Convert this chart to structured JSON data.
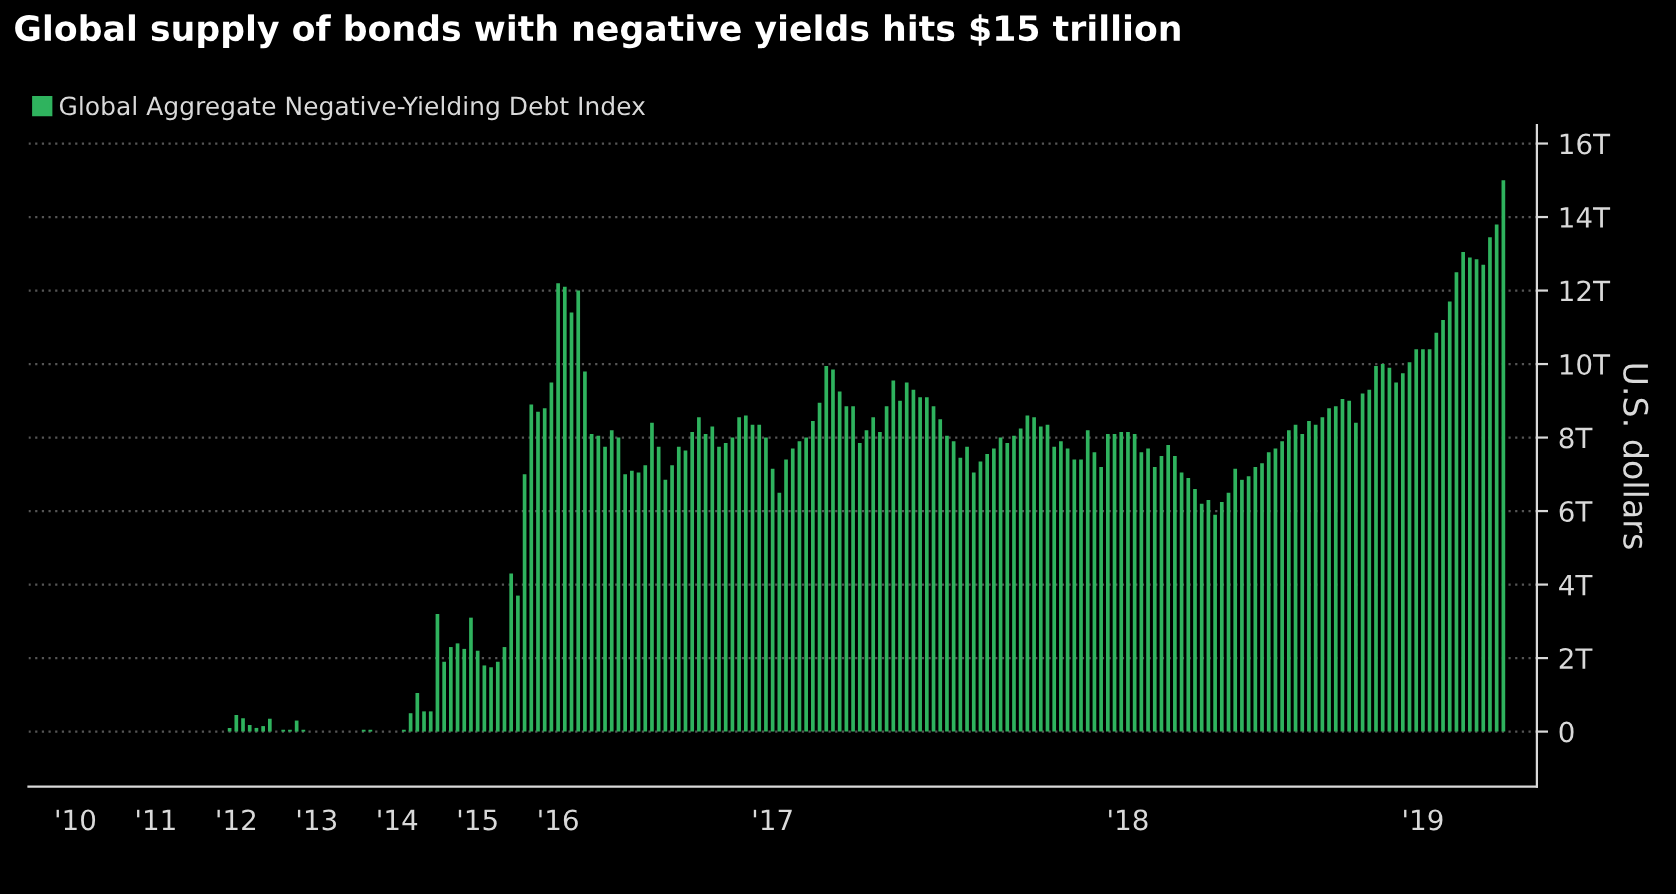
{
  "chart_data": {
    "type": "bar",
    "title": "Global supply of bonds with negative yields hits $15 trillion",
    "ylabel": "U.S. dollars",
    "categories": [
      null,
      null,
      null,
      null,
      null,
      null,
      "'10",
      null,
      null,
      null,
      null,
      null,
      null,
      null,
      null,
      null,
      null,
      null,
      "'11",
      null,
      null,
      null,
      null,
      null,
      null,
      null,
      null,
      null,
      null,
      null,
      "'12",
      null,
      null,
      null,
      null,
      null,
      null,
      null,
      null,
      null,
      null,
      null,
      "'13",
      null,
      null,
      null,
      null,
      null,
      null,
      null,
      null,
      null,
      null,
      null,
      "'14",
      null,
      null,
      null,
      null,
      null,
      null,
      null,
      null,
      null,
      null,
      null,
      "'15",
      null,
      null,
      null,
      null,
      null,
      null,
      null,
      null,
      null,
      null,
      null,
      "'16",
      null,
      null,
      null,
      null,
      null,
      null,
      null,
      null,
      null,
      null,
      null,
      null,
      null,
      null,
      null,
      null,
      null,
      null,
      null,
      null,
      null,
      null,
      null,
      null,
      null,
      null,
      null,
      null,
      null,
      null,
      null,
      "'17",
      null,
      null,
      null,
      null,
      null,
      null,
      null,
      null,
      null,
      null,
      null,
      null,
      null,
      null,
      null,
      null,
      null,
      null,
      null,
      null,
      null,
      null,
      null,
      null,
      null,
      null,
      null,
      null,
      null,
      null,
      null,
      null,
      null,
      null,
      null,
      null,
      null,
      null,
      null,
      null,
      null,
      null,
      null,
      null,
      null,
      null,
      null,
      null,
      null,
      null,
      null,
      null,
      "'18",
      null,
      null,
      null,
      null,
      null,
      null,
      null,
      null,
      null,
      null,
      null,
      null,
      null,
      null,
      null,
      null,
      null,
      null,
      null,
      null,
      null,
      null,
      null,
      null,
      null,
      null,
      null,
      null,
      null,
      null,
      null,
      null,
      null,
      null,
      null,
      null,
      null,
      null,
      null,
      null,
      null,
      null,
      null,
      "'19",
      null,
      null,
      null,
      null,
      null,
      null,
      null,
      null,
      null,
      null,
      null,
      null
    ],
    "series": [
      {
        "name": "Global Aggregate Negative-Yielding Debt Index",
        "color": "#2fb35e",
        "values": [
          0,
          0,
          0,
          0,
          0,
          0,
          0,
          0,
          0,
          0,
          0,
          0,
          0,
          0,
          0,
          0,
          0,
          0,
          0,
          0,
          0,
          0,
          0,
          0,
          0,
          0,
          0,
          0,
          0,
          0.1,
          0.45,
          0.36,
          0.18,
          0.1,
          0.15,
          0.35,
          0,
          0.05,
          0.05,
          0.3,
          0.05,
          0,
          0,
          0,
          0,
          0,
          0,
          0,
          0,
          0.05,
          0.05,
          0,
          0,
          0,
          0,
          0.05,
          0.5,
          1.05,
          0.55,
          0.55,
          3.2,
          1.9,
          2.3,
          2.4,
          2.25,
          3.1,
          2.2,
          1.8,
          1.75,
          1.9,
          2.3,
          4.3,
          3.7,
          7.0,
          8.9,
          8.7,
          8.8,
          9.5,
          12.2,
          12.1,
          11.4,
          12.0,
          9.8,
          8.1,
          8.05,
          7.75,
          8.2,
          8.0,
          7.0,
          7.1,
          7.05,
          7.25,
          8.4,
          7.75,
          6.85,
          7.25,
          7.75,
          7.65,
          8.15,
          8.55,
          8.1,
          8.3,
          7.75,
          7.85,
          8.0,
          8.55,
          8.6,
          8.35,
          8.35,
          8.0,
          7.15,
          6.5,
          7.4,
          7.7,
          7.9,
          8.0,
          8.45,
          8.95,
          9.95,
          9.85,
          9.25,
          8.85,
          8.85,
          7.85,
          8.2,
          8.55,
          8.15,
          8.85,
          9.55,
          9.0,
          9.5,
          9.3,
          9.1,
          9.1,
          8.85,
          8.5,
          8.05,
          7.9,
          7.45,
          7.75,
          7.05,
          7.35,
          7.55,
          7.7,
          8.0,
          7.85,
          8.05,
          8.25,
          8.6,
          8.55,
          8.3,
          8.35,
          7.75,
          7.9,
          7.7,
          7.4,
          7.4,
          8.2,
          7.6,
          7.2,
          8.1,
          8.1,
          8.15,
          8.15,
          8.1,
          7.6,
          7.7,
          7.2,
          7.5,
          7.8,
          7.5,
          7.05,
          6.9,
          6.6,
          6.2,
          6.3,
          5.9,
          6.25,
          6.5,
          7.15,
          6.85,
          6.95,
          7.2,
          7.3,
          7.6,
          7.7,
          7.9,
          8.2,
          8.35,
          8.1,
          8.45,
          8.35,
          8.55,
          8.8,
          8.85,
          9.05,
          9.0,
          8.4,
          9.2,
          9.3,
          9.95,
          10.0,
          9.9,
          9.5,
          9.75,
          10.05,
          10.4,
          10.4,
          10.4,
          10.85,
          11.2,
          11.7,
          12.5,
          13.05,
          12.9,
          12.85,
          12.7,
          13.45,
          13.8,
          15.0
        ]
      }
    ],
    "ylim": [
      -1.5,
      16.5
    ],
    "yticks": [
      0,
      {
        "value": 2,
        "label": "2T"
      },
      {
        "value": 4,
        "label": "4T"
      },
      {
        "value": 6,
        "label": "6T"
      },
      {
        "value": 8,
        "label": "8T"
      },
      {
        "value": 10,
        "label": "10T"
      },
      {
        "value": 12,
        "label": "12T"
      },
      {
        "value": 14,
        "label": "14T"
      },
      {
        "value": 16,
        "label": "16T"
      }
    ],
    "grid": "y",
    "legend": "top left"
  }
}
